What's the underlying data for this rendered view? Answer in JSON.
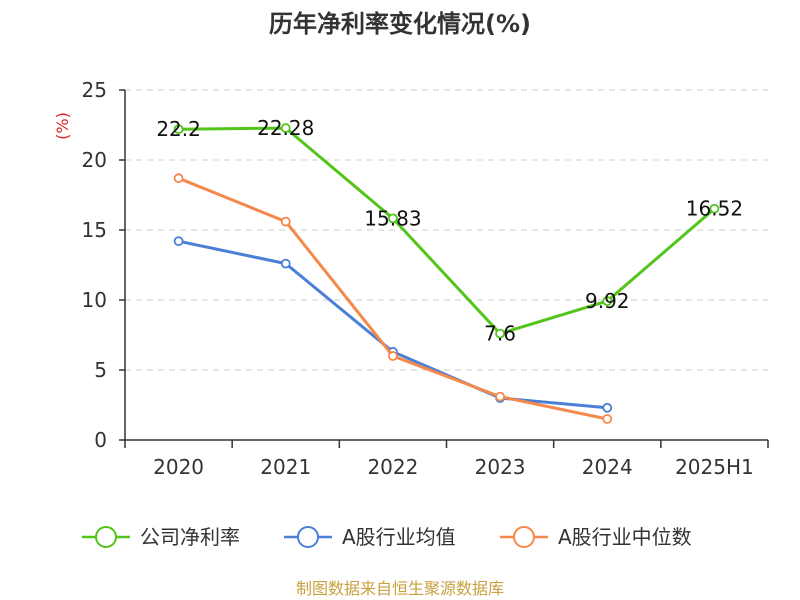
{
  "chart_data": {
    "type": "line",
    "title": "历年净利率变化情况(%)",
    "ylabel": "(%)",
    "xlabel": "",
    "categories": [
      "2020",
      "2021",
      "2022",
      "2023",
      "2024",
      "2025H1"
    ],
    "ylim": [
      0,
      25
    ],
    "yticks": [
      0,
      5,
      10,
      15,
      20,
      25
    ],
    "grid": true,
    "legend_position": "bottom",
    "series": [
      {
        "name": "公司净利率",
        "color": "#52c41a",
        "values": [
          22.2,
          22.28,
          15.83,
          7.6,
          9.92,
          16.52
        ],
        "labels": [
          "22.2",
          "22.28",
          "15.83",
          "7.6",
          "9.92",
          "16.52"
        ]
      },
      {
        "name": "A股行业均值",
        "color": "#4a7fd6",
        "values": [
          14.2,
          12.6,
          6.3,
          3.0,
          2.3,
          null
        ]
      },
      {
        "name": "A股行业中位数",
        "color": "#f5884a",
        "values": [
          18.7,
          15.6,
          6.0,
          3.1,
          1.5,
          null
        ]
      }
    ]
  },
  "source": "制图数据来自恒生聚源数据库"
}
